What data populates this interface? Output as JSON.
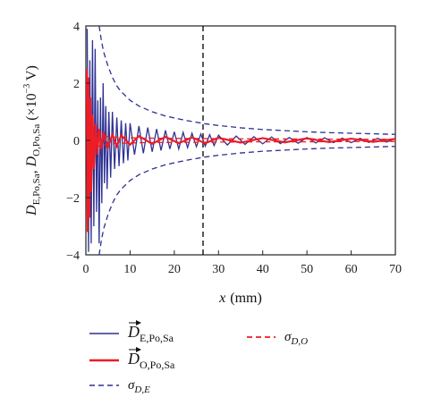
{
  "chart_data": {
    "type": "line",
    "xlabel_var": "x",
    "xlabel_unit": "(mm)",
    "ylabel_parts": {
      "s1_main": "D",
      "s1_sub": "E,Po,Sa",
      "sep": ",",
      "s2_main": "D",
      "s2_sub": "O,Po,Sa",
      "unit_open": "(×10",
      "unit_exp": "−3",
      "unit_close": " V)"
    },
    "xlim": [
      0,
      70
    ],
    "ylim": [
      -4,
      4
    ],
    "xticks": [
      "0",
      "10",
      "20",
      "30",
      "40",
      "50",
      "60",
      "70"
    ],
    "yticks": [
      "−4",
      "−2",
      "0",
      "2",
      "4"
    ],
    "grid": false,
    "vline_x": 26.5,
    "colors": {
      "blue": "#2e3192",
      "red": "#ee1c25",
      "vline": "#111111"
    },
    "series": [
      {
        "name_main": "D",
        "name_sub": "E,Po,Sa",
        "style": "solid",
        "color": "#2e3192",
        "x": [
          0.3,
          0.6,
          0.9,
          1.2,
          1.5,
          1.8,
          2.1,
          2.4,
          2.7,
          3.0,
          3.3,
          3.6,
          3.9,
          4.2,
          4.5,
          4.8,
          5.2,
          5.6,
          6.0,
          6.5,
          7.0,
          7.5,
          8.0,
          8.5,
          9.0,
          9.5,
          10,
          11,
          12,
          13,
          14,
          15,
          16,
          17,
          18,
          19,
          20,
          21,
          22,
          23,
          24,
          25,
          26,
          27,
          28,
          29,
          30,
          32,
          34,
          36,
          38,
          40,
          42,
          44,
          46,
          48,
          50,
          52,
          54,
          56,
          58,
          60,
          62,
          64,
          66,
          68,
          70
        ],
        "y": [
          3.9,
          -3.9,
          2.8,
          -3.6,
          3.5,
          -3.0,
          3.2,
          -2.5,
          1.4,
          -3.6,
          1.5,
          -2.2,
          2.0,
          -1.5,
          1.2,
          -1.7,
          1.0,
          -1.3,
          1.0,
          -1.0,
          0.8,
          -0.9,
          0.7,
          -0.8,
          0.6,
          -0.7,
          0.6,
          -0.5,
          0.5,
          -0.45,
          0.45,
          -0.4,
          0.4,
          -0.35,
          0.35,
          -0.3,
          0.3,
          -0.3,
          0.28,
          -0.25,
          0.25,
          -0.22,
          0.22,
          -0.2,
          0.2,
          -0.18,
          0.18,
          -0.16,
          0.15,
          -0.14,
          0.13,
          -0.12,
          0.12,
          -0.11,
          0.1,
          -0.1,
          0.1,
          -0.09,
          0.09,
          -0.08,
          0.08,
          -0.08,
          0.07,
          -0.07,
          0.07,
          -0.06,
          0.06
        ]
      },
      {
        "name_main": "D",
        "name_sub": "O,Po,Sa",
        "style": "solid",
        "color": "#ee1c25",
        "x": [
          0.2,
          0.4,
          0.6,
          0.8,
          1.0,
          1.2,
          1.5,
          1.8,
          2.2,
          2.6,
          3.0,
          3.5,
          4,
          5,
          6,
          7,
          8,
          10,
          12,
          15,
          18,
          21,
          24,
          27,
          30,
          35,
          40,
          45,
          50,
          55,
          60,
          65,
          70
        ],
        "y": [
          2.5,
          -3.2,
          2.2,
          -2.7,
          1.5,
          -1.8,
          0.9,
          -1.0,
          0.6,
          -0.5,
          0.4,
          -0.3,
          0.3,
          -0.25,
          0.2,
          -0.2,
          0.18,
          -0.15,
          0.15,
          -0.12,
          0.12,
          -0.1,
          0.1,
          -0.1,
          0.09,
          -0.08,
          0.08,
          -0.07,
          0.07,
          -0.06,
          0.06,
          -0.05,
          0.05
        ]
      },
      {
        "name_main": "σ",
        "name_sub": "D,E",
        "style": "dashed",
        "color": "#2e3192",
        "x": [
          3.0,
          3.5,
          4,
          5,
          6,
          7,
          8,
          10,
          12,
          15,
          18,
          21,
          24,
          27,
          30,
          35,
          40,
          45,
          50,
          55,
          60,
          65,
          70
        ],
        "y": [
          4.0,
          3.5,
          3.1,
          2.6,
          2.2,
          1.9,
          1.7,
          1.4,
          1.2,
          1.0,
          0.85,
          0.75,
          0.66,
          0.58,
          0.52,
          0.44,
          0.38,
          0.34,
          0.3,
          0.27,
          0.25,
          0.23,
          0.21
        ]
      },
      {
        "name_main": "σ",
        "name_sub": "D,O",
        "style": "dashed",
        "color": "#ee1c25",
        "x": [
          0.3,
          0.6,
          1,
          2,
          3,
          5,
          8,
          12,
          20,
          30,
          40,
          50,
          60,
          70
        ],
        "y": [
          2.4,
          1.2,
          0.6,
          0.3,
          0.2,
          0.13,
          0.1,
          0.08,
          0.07,
          0.06,
          0.05,
          0.05,
          0.04,
          0.04
        ]
      }
    ]
  }
}
